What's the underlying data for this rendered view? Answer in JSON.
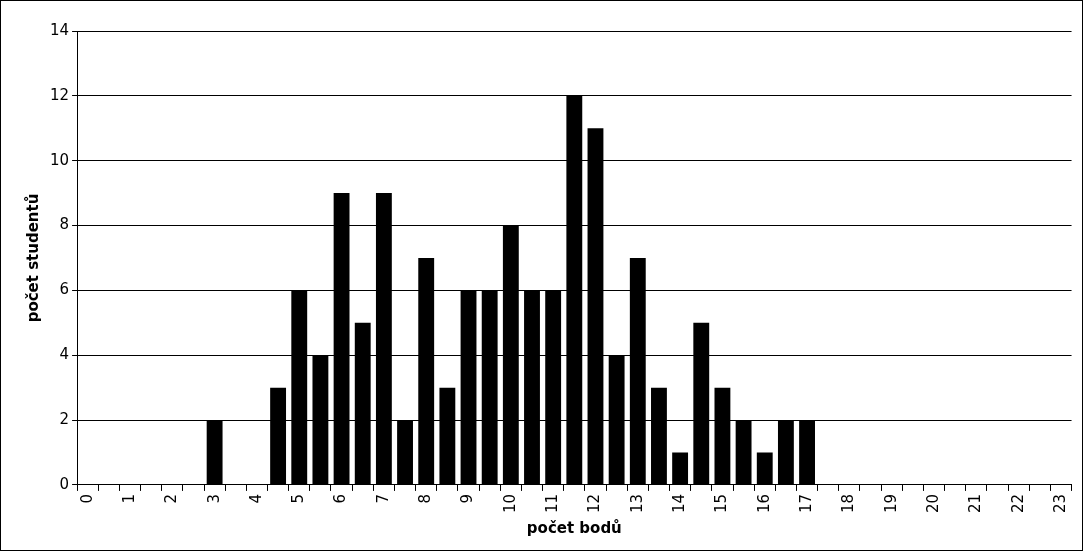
{
  "chart_data": {
    "type": "bar",
    "xlabel": "počet bodů",
    "ylabel": "počet studentů",
    "categories": [
      "0",
      null,
      "1",
      null,
      "2",
      null,
      "3",
      null,
      "4",
      null,
      "5",
      null,
      "6",
      null,
      "7",
      null,
      "8",
      null,
      "9",
      null,
      "10",
      null,
      "11",
      null,
      "12",
      null,
      "13",
      null,
      "14",
      null,
      "15",
      null,
      "16",
      null,
      "17",
      null,
      "18",
      null,
      "19",
      null,
      "20",
      null,
      "21",
      null,
      "22",
      null,
      "23"
    ],
    "values": [
      0,
      0,
      0,
      0,
      0,
      0,
      2,
      0,
      0,
      3,
      6,
      4,
      9,
      5,
      9,
      2,
      7,
      3,
      6,
      6,
      8,
      6,
      6,
      12,
      11,
      4,
      7,
      3,
      1,
      5,
      3,
      2,
      1,
      2,
      2,
      0,
      0,
      0,
      0,
      0,
      0,
      0,
      0,
      0,
      0,
      0,
      0
    ],
    "color": "#000000",
    "ylim": [
      0,
      14
    ],
    "yticks": [
      0,
      2,
      4,
      6,
      8,
      10,
      12,
      14
    ],
    "grid": "y",
    "legend": false
  }
}
